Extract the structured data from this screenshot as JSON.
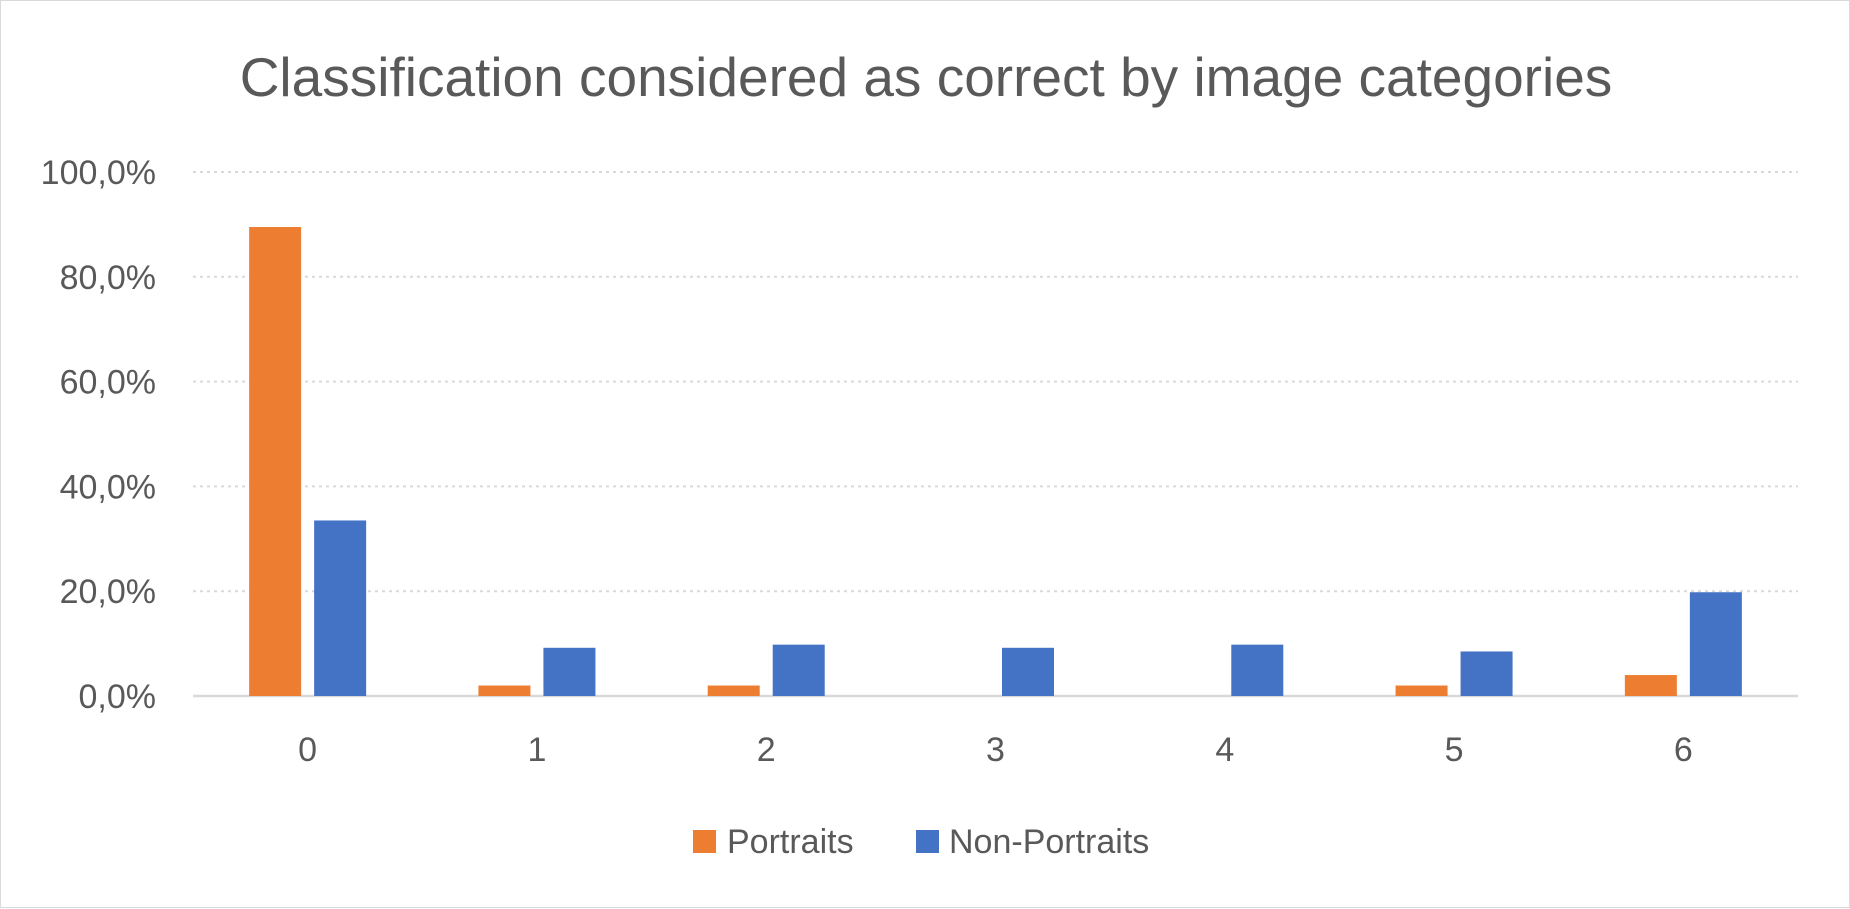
{
  "chart_data": {
    "type": "bar",
    "title": "Classification considered as correct by image categories",
    "xlabel": "",
    "ylabel": "",
    "categories": [
      "0",
      "1",
      "2",
      "3",
      "4",
      "5",
      "6"
    ],
    "series": [
      {
        "name": "Portraits",
        "color": "#ED7D31",
        "values": [
          89.5,
          2.0,
          2.0,
          0.0,
          0.0,
          2.0,
          4.0
        ]
      },
      {
        "name": "Non-Portraits",
        "color": "#4472C4",
        "values": [
          33.5,
          9.2,
          9.8,
          9.2,
          9.8,
          8.5,
          19.8
        ]
      }
    ],
    "ylim": [
      0,
      100
    ],
    "yticks": [
      0,
      20,
      40,
      60,
      80,
      100
    ],
    "ytick_labels": [
      "0,0%",
      "20,0%",
      "40,0%",
      "60,0%",
      "80,0%",
      "100,0%"
    ],
    "grid": true,
    "legend_position": "bottom"
  }
}
